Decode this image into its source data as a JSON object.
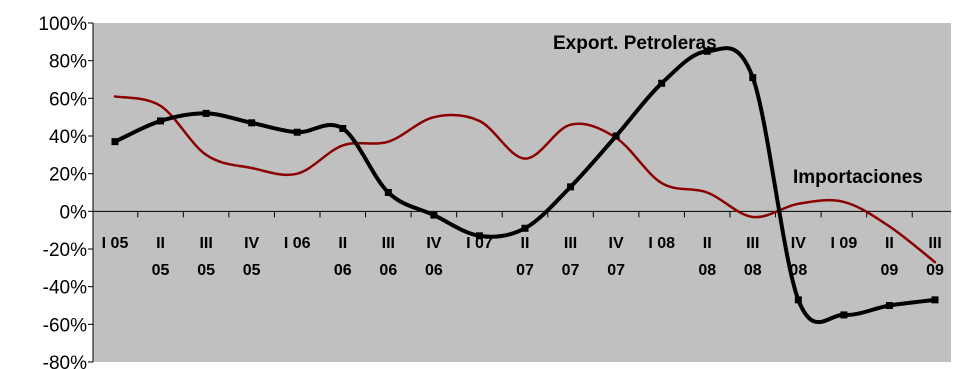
{
  "chart_data": {
    "type": "line",
    "title": "",
    "xlabel": "",
    "ylabel": "",
    "ylim": [
      -80,
      100
    ],
    "ytick_step": 20,
    "y_unit": "%",
    "grid": false,
    "plot_background": "#c0c0c0",
    "categories": [
      [
        "I 05"
      ],
      [
        "II",
        "05"
      ],
      [
        "III",
        "05"
      ],
      [
        "IV",
        "05"
      ],
      [
        "I 06"
      ],
      [
        "II",
        "06"
      ],
      [
        "III",
        "06"
      ],
      [
        "IV",
        "06"
      ],
      [
        "I 07"
      ],
      [
        "II",
        "07"
      ],
      [
        "III",
        "07"
      ],
      [
        "IV",
        "07"
      ],
      [
        "I 08"
      ],
      [
        "II",
        "08"
      ],
      [
        "III",
        "08"
      ],
      [
        "IV",
        "08"
      ],
      [
        "I 09"
      ],
      [
        "II",
        "09"
      ],
      [
        "III",
        "09"
      ]
    ],
    "series": [
      {
        "name": "Export. Petroleras",
        "color": "#000000",
        "markers": true,
        "values": [
          37,
          48,
          52,
          47,
          42,
          44,
          10,
          -2,
          -13,
          -9,
          13,
          40,
          68,
          85,
          71,
          -47,
          -55,
          -50,
          -47
        ]
      },
      {
        "name": "Importaciones",
        "color": "#8b0000",
        "markers": false,
        "values": [
          61,
          56,
          30,
          23,
          20,
          35,
          37,
          50,
          48,
          28,
          46,
          39,
          15,
          10,
          -3,
          4,
          5,
          -8,
          -27
        ]
      }
    ]
  }
}
